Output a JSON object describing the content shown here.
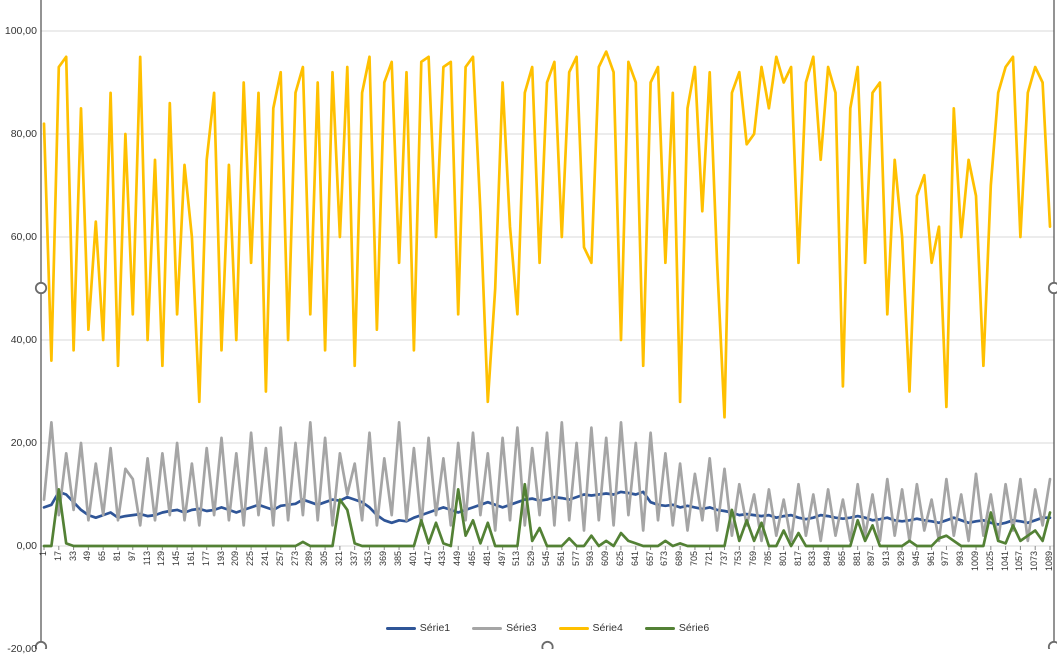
{
  "chart_data": {
    "type": "line",
    "title": "",
    "grid": true,
    "legend": {
      "position": "bottom",
      "entries": [
        "Série1",
        "Série3",
        "Série4",
        "Série6"
      ]
    },
    "y_axis": {
      "min": -20,
      "max": 100,
      "step": 20,
      "tick_values": [
        100,
        80,
        60,
        40,
        20,
        0,
        -20
      ],
      "tick_labels": [
        "100,00",
        "80,00",
        "60,00",
        "40,00",
        "20,00",
        "0,00",
        "-20,00"
      ],
      "number_format": "decimal-comma"
    },
    "x_axis": {
      "tick_start": 1,
      "tick_step": 16,
      "tick_end": 1089,
      "tick_labels": [
        "1",
        "17",
        "33",
        "49",
        "65",
        "81",
        "97",
        "113",
        "129",
        "145",
        "161",
        "177",
        "193",
        "209",
        "225",
        "241",
        "257",
        "273",
        "289",
        "305",
        "321",
        "337",
        "353",
        "369",
        "385",
        "401",
        "417",
        "433",
        "449",
        "465",
        "481",
        "497",
        "513",
        "529",
        "545",
        "561",
        "577",
        "593",
        "609",
        "625",
        "641",
        "657",
        "673",
        "689",
        "705",
        "721",
        "737",
        "753",
        "769",
        "785",
        "801",
        "817",
        "833",
        "849",
        "865",
        "881",
        "897",
        "913",
        "929",
        "945",
        "961",
        "977",
        "993",
        "1009",
        "1025",
        "1041",
        "1057",
        "1073",
        "1089"
      ],
      "labels_rotated_bottom_to_top": true
    },
    "x_sample_start": 1,
    "x_sample_step": 8,
    "series": [
      {
        "name": "Série1",
        "color": "#2F5597",
        "values": [
          7.5,
          8,
          10.5,
          10,
          8.5,
          7,
          6,
          5.5,
          6,
          6.5,
          5.5,
          5.8,
          6,
          6.2,
          5.8,
          6,
          6.5,
          6.8,
          7,
          6.5,
          7,
          7.2,
          6.8,
          7,
          7.5,
          7,
          6.5,
          7,
          7.5,
          8,
          7.5,
          7,
          7.8,
          8,
          8.2,
          9,
          8.5,
          8,
          8.5,
          9,
          8.8,
          9.5,
          9,
          8.5,
          7.5,
          6,
          5,
          4.5,
          5,
          4.8,
          5.5,
          6,
          6.5,
          7,
          7.5,
          7,
          6.5,
          7,
          7.5,
          8,
          8.5,
          8,
          7.5,
          8,
          8.5,
          9,
          9.2,
          8.8,
          9,
          9.5,
          9.3,
          9,
          9.5,
          10,
          9.8,
          10,
          10.2,
          10,
          10.5,
          10.3,
          10,
          10.5,
          8.5,
          8,
          7.8,
          8,
          7.5,
          7.8,
          7.5,
          7.2,
          7.5,
          7,
          6.8,
          6.5,
          6,
          6.2,
          6,
          5.8,
          6,
          5.5,
          5.8,
          6,
          5.5,
          5.2,
          5.5,
          6,
          5.8,
          5.5,
          5.3,
          5.5,
          5.8,
          5.5,
          5,
          5.2,
          5.5,
          5,
          4.8,
          5,
          5.3,
          5,
          4.8,
          4.5,
          5,
          5.5,
          5,
          4.5,
          4.8,
          5,
          4.5,
          4.2,
          4.5,
          5,
          4.8,
          4.5,
          5,
          5.5,
          5.5
        ]
      },
      {
        "name": "Série3",
        "color": "#A5A5A5",
        "values": [
          9,
          24,
          6,
          18,
          7,
          20,
          5,
          16,
          6,
          19,
          5,
          15,
          13,
          4,
          17,
          5,
          18,
          6,
          20,
          5,
          16,
          4,
          19,
          6,
          21,
          5,
          18,
          4,
          22,
          6,
          19,
          4,
          23,
          5,
          20,
          6,
          24,
          5,
          21,
          4,
          18,
          10,
          16,
          5,
          22,
          4,
          17,
          6,
          24,
          5,
          19,
          4,
          21,
          6,
          17,
          4,
          20,
          5,
          22,
          6,
          18,
          3,
          21,
          5,
          23,
          4,
          19,
          6,
          22,
          4,
          24,
          5,
          20,
          3,
          23,
          5,
          21,
          4,
          24,
          6,
          20,
          3,
          22,
          5,
          18,
          4,
          16,
          3,
          14,
          5,
          17,
          3,
          15,
          2,
          12,
          4,
          10,
          1,
          11,
          2,
          9,
          1,
          12,
          2,
          10,
          1,
          11,
          2,
          9,
          1,
          12,
          2,
          10,
          1,
          13,
          2,
          11,
          1,
          12,
          3,
          9,
          1,
          13,
          2,
          10,
          1,
          14,
          2,
          10,
          1,
          12,
          3,
          13,
          1,
          11,
          4,
          13
        ]
      },
      {
        "name": "Série4",
        "color": "#FFC000",
        "values": [
          82,
          36,
          93,
          95,
          38,
          85,
          42,
          63,
          40,
          88,
          35,
          80,
          45,
          95,
          40,
          75,
          35,
          86,
          45,
          74,
          60,
          28,
          75,
          88,
          38,
          74,
          40,
          90,
          55,
          88,
          30,
          85,
          92,
          40,
          88,
          93,
          45,
          90,
          38,
          92,
          60,
          93,
          35,
          88,
          95,
          42,
          90,
          94,
          55,
          92,
          38,
          94,
          95,
          60,
          93,
          94,
          45,
          93,
          95,
          65,
          28,
          50,
          90,
          62,
          45,
          88,
          93,
          55,
          90,
          94,
          60,
          92,
          95,
          58,
          55,
          93,
          96,
          92,
          40,
          94,
          90,
          35,
          90,
          93,
          55,
          88,
          28,
          85,
          93,
          65,
          92,
          55,
          25,
          88,
          92,
          78,
          80,
          93,
          85,
          95,
          90,
          93,
          55,
          90,
          95,
          75,
          93,
          88,
          31,
          85,
          93,
          55,
          88,
          90,
          45,
          75,
          60,
          30,
          68,
          72,
          55,
          62,
          27,
          85,
          60,
          75,
          68,
          35,
          70,
          88,
          93,
          95,
          60,
          88,
          93,
          90,
          62
        ]
      },
      {
        "name": "Série6",
        "color": "#538135",
        "values": [
          0,
          0,
          11,
          0.5,
          0,
          0,
          0,
          0,
          0,
          0,
          0,
          0,
          0,
          0,
          0,
          0,
          0,
          0,
          0,
          0,
          0,
          0,
          0,
          0,
          0,
          0,
          0,
          0,
          0,
          0,
          0,
          0,
          0,
          0,
          0,
          0.8,
          0,
          0,
          0,
          0,
          9,
          7,
          0.5,
          0,
          0,
          0,
          0,
          0,
          0,
          0,
          0,
          5,
          0.5,
          4.5,
          0.5,
          0,
          11,
          2,
          5,
          0.5,
          4.5,
          0,
          0,
          0,
          0,
          12,
          1,
          3.5,
          0,
          0,
          0,
          1.5,
          0,
          0,
          2,
          0,
          1,
          0,
          2.5,
          1,
          0.5,
          0,
          0,
          0,
          1,
          0,
          0.5,
          0,
          0,
          0,
          0,
          0,
          0,
          7,
          1,
          5,
          1,
          4.5,
          0,
          0,
          3,
          0,
          2.5,
          0,
          0,
          0,
          0,
          0,
          0,
          0,
          5,
          1,
          4,
          0,
          0,
          0,
          0,
          1,
          0,
          0,
          0,
          1.5,
          2,
          1,
          0,
          0,
          0,
          0,
          6.5,
          1,
          0.5,
          4,
          1,
          2,
          3,
          1,
          6.5
        ]
      }
    ]
  },
  "colors": {
    "gridline": "#D9D9D9",
    "axis_border": "#595959",
    "tick_mark": "#898989",
    "tick_text": "#333333",
    "legend_text": "#333333",
    "handle_stroke": "#6B6B6B",
    "handle_fill": "#FFFFFF",
    "background": "#FFFFFF"
  },
  "selection": {
    "chart_selected": true,
    "handle_shape": "circle"
  }
}
